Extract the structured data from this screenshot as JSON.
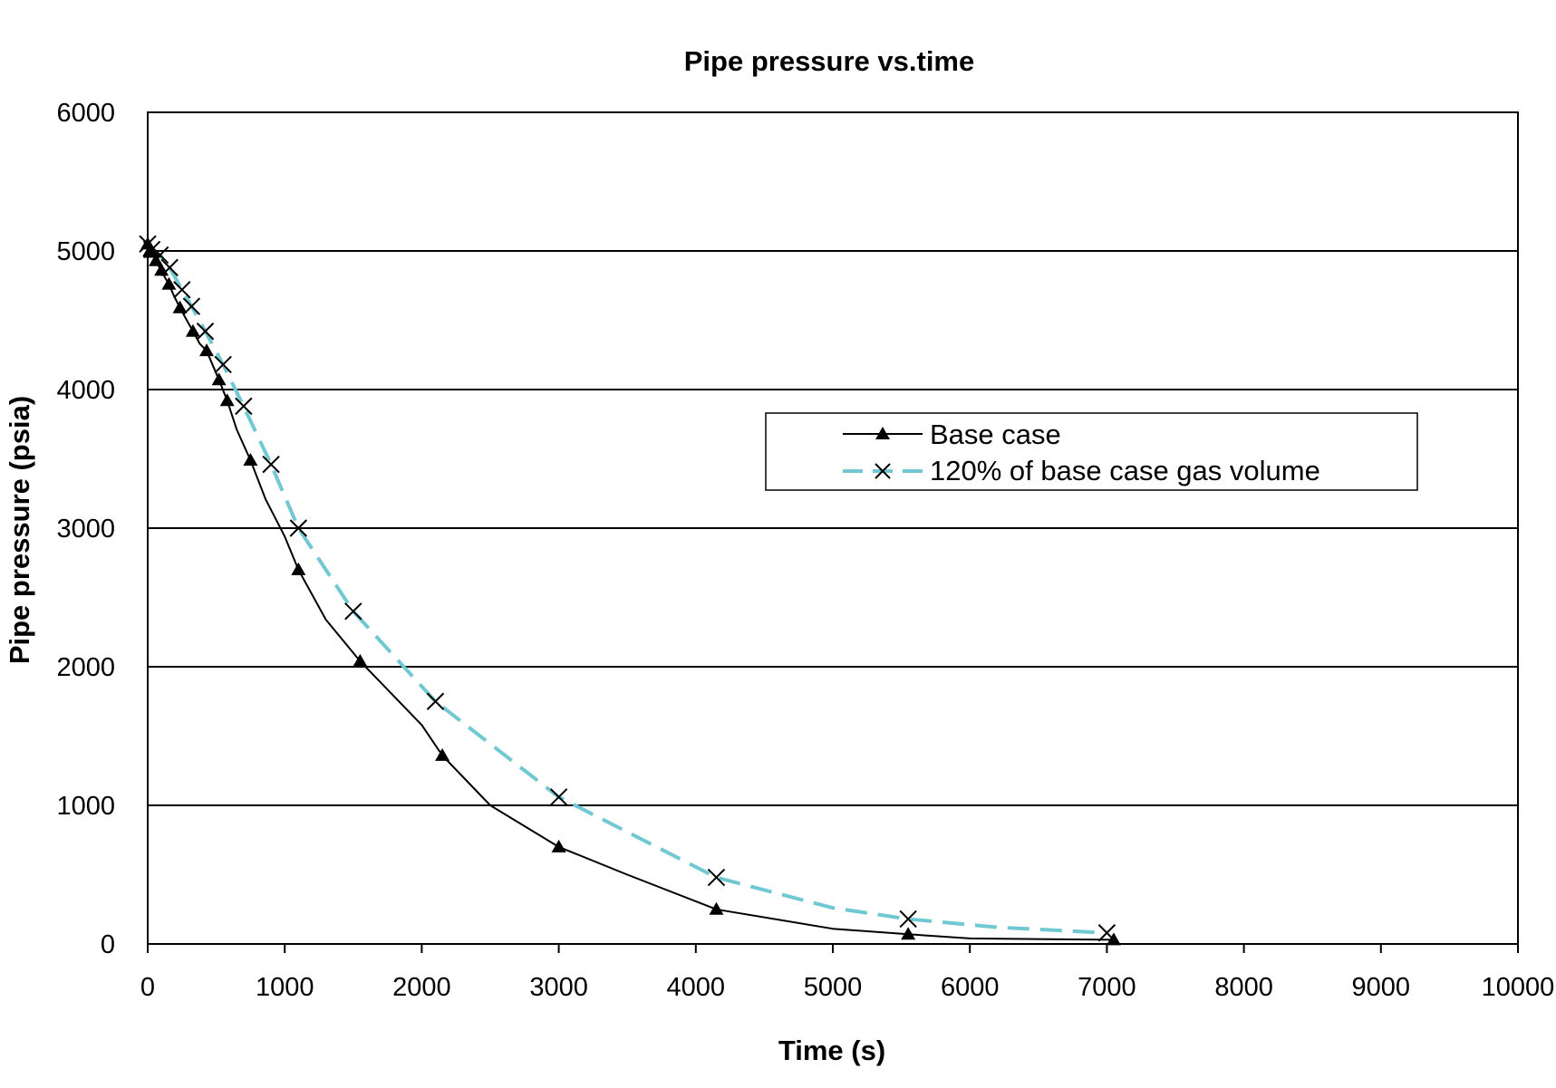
{
  "chart_data": {
    "type": "line",
    "title": "Pipe pressure vs.time",
    "xlabel": "Time (s)",
    "ylabel": "Pipe pressure (psia)",
    "xlim": [
      0,
      10000
    ],
    "ylim": [
      0,
      6000
    ],
    "xticks": [
      "0",
      "1000",
      "2000",
      "3000",
      "4000",
      "5000",
      "6000",
      "7000",
      "8000",
      "9000",
      "10000"
    ],
    "yticks": [
      "0",
      "1000",
      "2000",
      "3000",
      "4000",
      "5000",
      "6000"
    ],
    "grid": "horizontal",
    "legend_position": "right",
    "series": [
      {
        "name": "Base case",
        "color": "#000000",
        "line_style": "solid",
        "marker": "triangle",
        "points": [
          [
            0,
            5050
          ],
          [
            15,
            5000
          ],
          [
            30,
            4990
          ],
          [
            45,
            4960
          ],
          [
            60,
            4930
          ],
          [
            80,
            4890
          ],
          [
            100,
            4860
          ],
          [
            125,
            4810
          ],
          [
            155,
            4760
          ],
          [
            190,
            4680
          ],
          [
            235,
            4590
          ],
          [
            280,
            4510
          ],
          [
            330,
            4420
          ],
          [
            380,
            4330
          ],
          [
            430,
            4280
          ],
          [
            520,
            4070
          ],
          [
            580,
            3920
          ],
          [
            650,
            3710
          ],
          [
            750,
            3490
          ],
          [
            860,
            3210
          ],
          [
            1000,
            2940
          ],
          [
            1100,
            2700
          ],
          [
            1300,
            2340
          ],
          [
            1550,
            2040
          ],
          [
            2000,
            1580
          ],
          [
            2150,
            1360
          ],
          [
            2500,
            1000
          ],
          [
            3000,
            700
          ],
          [
            3500,
            500
          ],
          [
            4150,
            250
          ],
          [
            5000,
            110
          ],
          [
            5550,
            70
          ],
          [
            6000,
            40
          ],
          [
            7050,
            30
          ]
        ],
        "markers": [
          [
            0,
            5050
          ],
          [
            15,
            5000
          ],
          [
            30,
            4990
          ],
          [
            60,
            4930
          ],
          [
            100,
            4860
          ],
          [
            155,
            4760
          ],
          [
            235,
            4590
          ],
          [
            330,
            4420
          ],
          [
            430,
            4280
          ],
          [
            520,
            4070
          ],
          [
            580,
            3920
          ],
          [
            750,
            3490
          ],
          [
            1100,
            2700
          ],
          [
            1550,
            2040
          ],
          [
            2150,
            1360
          ],
          [
            3000,
            700
          ],
          [
            4150,
            250
          ],
          [
            5550,
            70
          ],
          [
            7050,
            30
          ]
        ]
      },
      {
        "name": "120% of base case gas volume",
        "color": "#6fc8d2",
        "line_style": "dashed",
        "marker": "x",
        "points": [
          [
            0,
            5050
          ],
          [
            30,
            5010
          ],
          [
            60,
            4990
          ],
          [
            90,
            4970
          ],
          [
            120,
            4930
          ],
          [
            160,
            4880
          ],
          [
            200,
            4810
          ],
          [
            250,
            4720
          ],
          [
            320,
            4600
          ],
          [
            420,
            4420
          ],
          [
            550,
            4180
          ],
          [
            700,
            3880
          ],
          [
            900,
            3460
          ],
          [
            1100,
            3000
          ],
          [
            1500,
            2400
          ],
          [
            2100,
            1750
          ],
          [
            3000,
            1060
          ],
          [
            4150,
            480
          ],
          [
            5000,
            260
          ],
          [
            5550,
            180
          ],
          [
            6200,
            120
          ],
          [
            7000,
            80
          ]
        ],
        "markers": [
          [
            0,
            5050
          ],
          [
            30,
            5010
          ],
          [
            90,
            4970
          ],
          [
            160,
            4880
          ],
          [
            250,
            4720
          ],
          [
            320,
            4600
          ],
          [
            420,
            4420
          ],
          [
            550,
            4180
          ],
          [
            700,
            3880
          ],
          [
            900,
            3460
          ],
          [
            1100,
            3000
          ],
          [
            1500,
            2400
          ],
          [
            2100,
            1750
          ],
          [
            3000,
            1060
          ],
          [
            4150,
            480
          ],
          [
            5550,
            180
          ],
          [
            7000,
            80
          ]
        ]
      }
    ]
  }
}
